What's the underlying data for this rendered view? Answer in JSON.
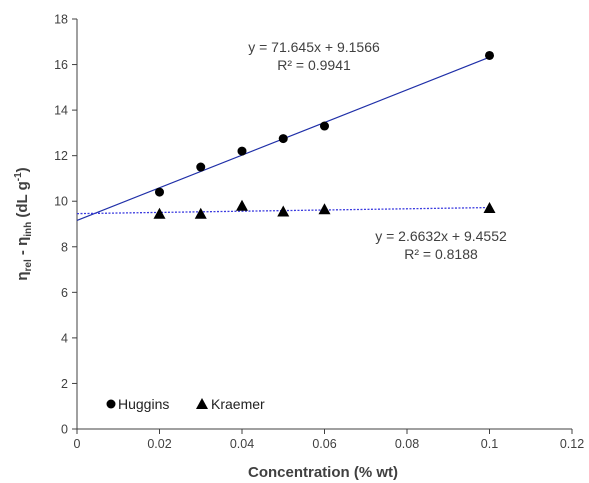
{
  "chart_data": {
    "type": "scatter",
    "xlabel": "Concentration (% wt)",
    "ylabel_parts": [
      "η",
      "rel",
      " - η",
      "inh",
      " (dL g",
      "-1",
      ")"
    ],
    "xlim": [
      0,
      0.12
    ],
    "ylim": [
      0,
      18
    ],
    "x_ticks": [
      "0",
      "0.02",
      "0.04",
      "0.06",
      "0.08",
      "0.1",
      "0.12"
    ],
    "y_ticks": [
      "0",
      "2",
      "4",
      "6",
      "8",
      "10",
      "12",
      "14",
      "16",
      "18"
    ],
    "grid": false,
    "legend_position": "bottom-left",
    "series": [
      {
        "name": "Huggins",
        "marker": "circle",
        "color": "#000000",
        "x": [
          0.02,
          0.03,
          0.04,
          0.05,
          0.06,
          0.1
        ],
        "y": [
          10.4,
          11.5,
          12.2,
          12.75,
          13.3,
          16.4
        ],
        "trendline": {
          "type": "linear",
          "slope": 71.645,
          "intercept": 9.1566,
          "style": "solid",
          "color": "#1f2fa8",
          "equation": "y = 71.645x + 9.1566",
          "r2": "R² = 0.9941"
        }
      },
      {
        "name": "Kraemer",
        "marker": "triangle",
        "color": "#000000",
        "x": [
          0.02,
          0.03,
          0.04,
          0.05,
          0.06,
          0.1
        ],
        "y": [
          9.45,
          9.45,
          9.8,
          9.55,
          9.65,
          9.7
        ],
        "trendline": {
          "type": "linear",
          "slope": 2.6632,
          "intercept": 9.4552,
          "style": "dotted",
          "color": "#3b3bdf",
          "equation": "y = 2.6632x + 9.4552",
          "r2": "R² = 0.8188"
        }
      }
    ]
  }
}
